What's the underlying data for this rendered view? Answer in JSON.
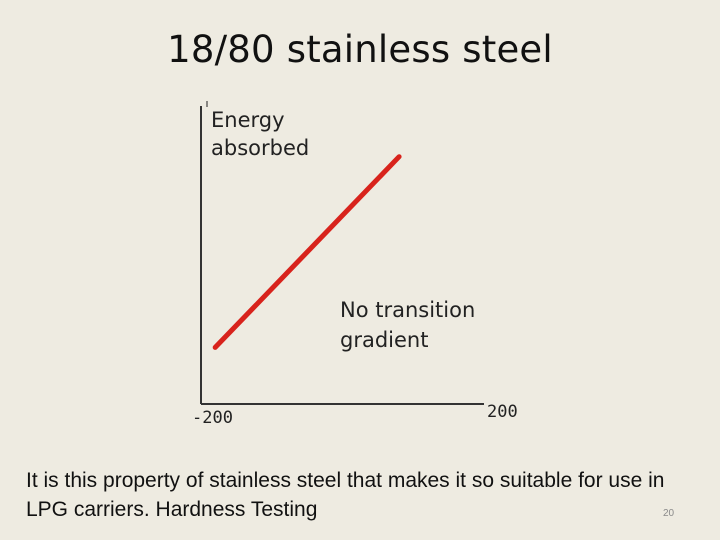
{
  "slide": {
    "title": "18/80 stainless steel",
    "body_text": "It is this property of stainless steel that makes it so suitable for use in LPG carriers. Hardness Testing",
    "slide_number": "20"
  },
  "chart_data": {
    "type": "line",
    "ylabel_lines": [
      "Energy",
      "absorbed"
    ],
    "xlabel": "",
    "x_tick_labels": [
      "-200",
      "200"
    ],
    "xlim": [
      -200,
      200
    ],
    "annotation_lines": [
      "No transition",
      "gradient"
    ],
    "series": [
      {
        "x": [
          -180,
          80
        ],
        "y": [
          0.19,
          0.83
        ]
      }
    ],
    "ylim": [
      0,
      1
    ],
    "line_color": "#d8231c",
    "grid": false
  }
}
